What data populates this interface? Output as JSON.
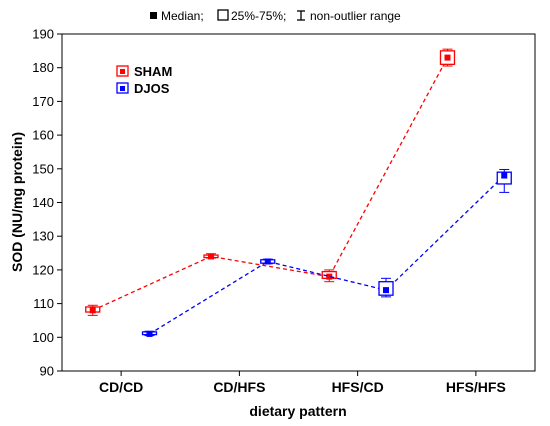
{
  "chart_data": {
    "type": "line",
    "legend_top": {
      "median_label": "Median;",
      "box_label": "25%-75%;",
      "whisker_label": "non-outlier range"
    },
    "xlabel": "dietary pattern",
    "ylabel": "SOD (NU/mg protein)",
    "categories": [
      "CD/CD",
      "CD/HFS",
      "HFS/CD",
      "HFS/HFS"
    ],
    "ylim": [
      90,
      190
    ],
    "yticks": [
      90,
      100,
      110,
      120,
      130,
      140,
      150,
      160,
      170,
      180,
      190
    ],
    "legend_position": "top-left inside plot",
    "series": [
      {
        "name": "SHAM",
        "color": "#ff0000",
        "offset": -0.06,
        "median": [
          108,
          124,
          118,
          183
        ],
        "q1": [
          107.5,
          123.7,
          117.5,
          181
        ],
        "q3": [
          109,
          124.4,
          119.5,
          185
        ],
        "min": [
          106.5,
          123.5,
          116.5,
          180.5
        ],
        "max": [
          109.5,
          124.8,
          120,
          185.5
        ]
      },
      {
        "name": "DJOS",
        "color": "#0000ff",
        "offset": 0.06,
        "median": [
          101,
          122.5,
          114,
          148
        ],
        "q1": [
          100.8,
          122,
          112.5,
          145.5
        ],
        "q3": [
          101.6,
          123,
          116.5,
          149
        ],
        "min": [
          100.5,
          121.8,
          112,
          143
        ],
        "max": [
          101.8,
          123.2,
          117.5,
          149.8
        ]
      }
    ]
  }
}
